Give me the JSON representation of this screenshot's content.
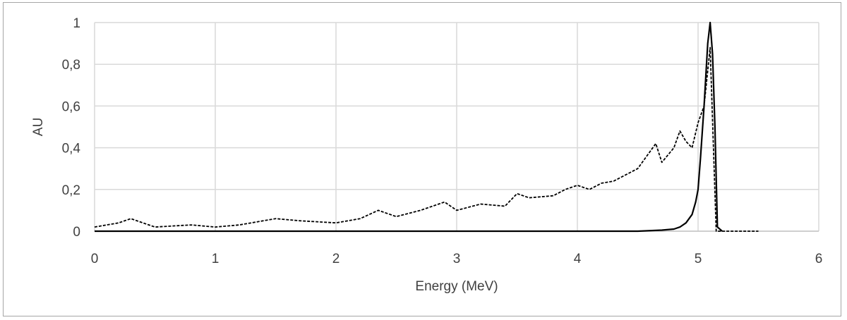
{
  "chart_data": {
    "type": "line",
    "xlabel": "Energy (MeV)",
    "ylabel": "AU",
    "xlim": [
      0,
      6
    ],
    "ylim": [
      0,
      1
    ],
    "x_ticks": [
      "0",
      "1",
      "2",
      "3",
      "4",
      "5",
      "6"
    ],
    "y_ticks": [
      "0",
      "0,2",
      "0,4",
      "0,6",
      "0,8",
      "1"
    ],
    "grid": true,
    "legend": "none",
    "colors": {
      "solid": "#000000",
      "dashed": "#000000",
      "grid": "#d9d9d9",
      "axis": "#bfbfbf"
    },
    "series": [
      {
        "style": "dashed",
        "x": [
          0.0,
          0.2,
          0.3,
          0.5,
          0.8,
          1.0,
          1.2,
          1.5,
          1.7,
          2.0,
          2.2,
          2.35,
          2.5,
          2.7,
          2.9,
          3.0,
          3.2,
          3.4,
          3.5,
          3.6,
          3.8,
          3.9,
          4.0,
          4.1,
          4.2,
          4.3,
          4.4,
          4.5,
          4.6,
          4.65,
          4.7,
          4.8,
          4.85,
          4.9,
          4.95,
          5.0,
          5.05,
          5.1,
          5.15,
          5.2,
          5.5
        ],
        "y": [
          0.02,
          0.04,
          0.06,
          0.02,
          0.03,
          0.02,
          0.03,
          0.06,
          0.05,
          0.04,
          0.06,
          0.1,
          0.07,
          0.1,
          0.14,
          0.1,
          0.13,
          0.12,
          0.18,
          0.16,
          0.17,
          0.2,
          0.22,
          0.2,
          0.23,
          0.24,
          0.27,
          0.3,
          0.38,
          0.42,
          0.33,
          0.4,
          0.48,
          0.43,
          0.4,
          0.52,
          0.6,
          0.88,
          0.0,
          0.0,
          0.0
        ]
      },
      {
        "style": "solid",
        "x": [
          0.0,
          1.0,
          2.0,
          3.0,
          4.0,
          4.5,
          4.7,
          4.8,
          4.85,
          4.9,
          4.95,
          4.98,
          5.0,
          5.02,
          5.05,
          5.08,
          5.1,
          5.12,
          5.14,
          5.16,
          5.2
        ],
        "y": [
          0.0,
          0.0,
          0.0,
          0.0,
          0.0,
          0.0,
          0.005,
          0.01,
          0.02,
          0.04,
          0.08,
          0.14,
          0.2,
          0.35,
          0.6,
          0.9,
          1.0,
          0.85,
          0.5,
          0.02,
          0.0
        ]
      }
    ]
  }
}
